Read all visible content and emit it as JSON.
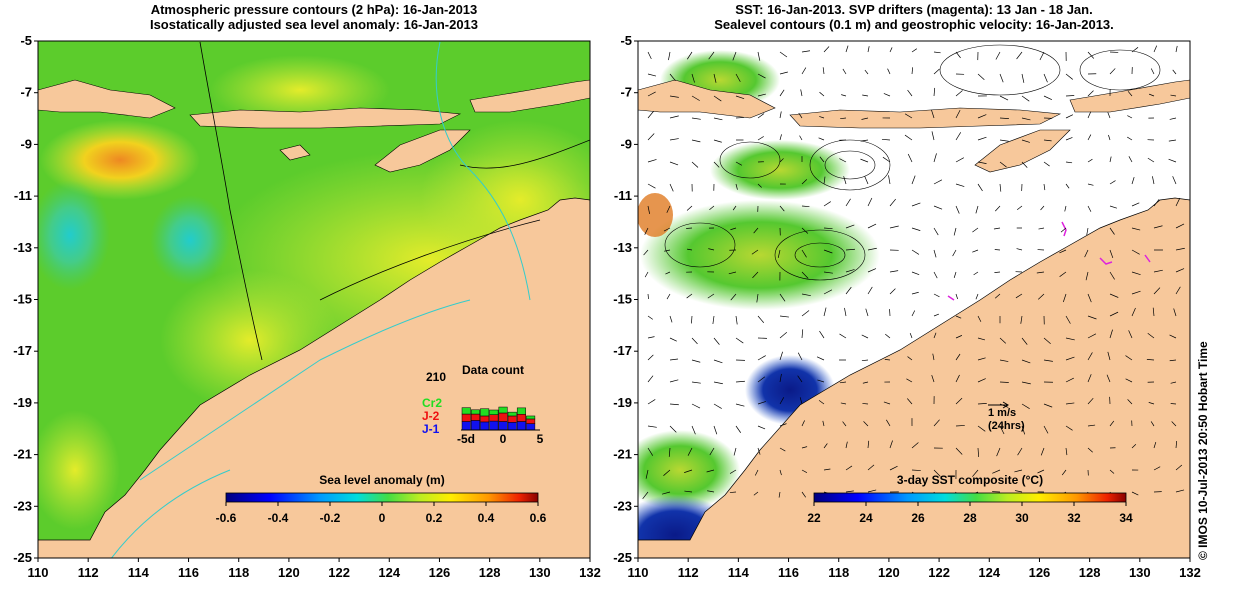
{
  "left_panel": {
    "title_lines": [
      "Atmospheric pressure contours (2 hPa): 16-Jan-2013",
      "Isostatically adjusted sea level anomaly: 16-Jan-2013"
    ],
    "colorbar": {
      "label": "Sea level anomaly (m)",
      "ticks": [
        "-0.6",
        "-0.4",
        "-0.2",
        "0",
        "0.2",
        "0.4",
        "0.6"
      ],
      "range": [
        -0.6,
        0.6
      ]
    },
    "data_count": {
      "title": "Data count",
      "max_label": "210",
      "series_labels": [
        "Cr2",
        "J-2",
        "J-1"
      ],
      "series_colors": [
        "#22dd22",
        "#ee1111",
        "#1111ee"
      ],
      "x_ticks": [
        "-5d",
        "0",
        "5"
      ],
      "bars": [
        {
          "j1": 40,
          "j2": 35,
          "cr2": 30
        },
        {
          "j1": 45,
          "j2": 30,
          "cr2": 20
        },
        {
          "j1": 38,
          "j2": 28,
          "cr2": 34
        },
        {
          "j1": 42,
          "j2": 30,
          "cr2": 22
        },
        {
          "j1": 40,
          "j2": 40,
          "cr2": 28
        },
        {
          "j1": 36,
          "j2": 30,
          "cr2": 18
        },
        {
          "j1": 40,
          "j2": 34,
          "cr2": 30
        },
        {
          "j1": 30,
          "j2": 22,
          "cr2": 14
        }
      ]
    }
  },
  "right_panel": {
    "title_lines": [
      "SST: 16-Jan-2013. SVP drifters (magenta): 13 Jan - 18 Jan.",
      "Sealevel contours (0.1 m) and geostrophic velocity: 16-Jan-2013."
    ],
    "colorbar": {
      "label": "3-day SST composite (°C)",
      "ticks": [
        "22",
        "24",
        "26",
        "28",
        "30",
        "32",
        "34"
      ],
      "range": [
        22,
        34
      ]
    },
    "velocity_key": {
      "speed": "1 m/s",
      "duration": "(24hrs)"
    }
  },
  "axes": {
    "lon_ticks": [
      "110",
      "112",
      "114",
      "116",
      "118",
      "120",
      "122",
      "124",
      "126",
      "128",
      "130",
      "132"
    ],
    "lat_ticks": [
      "-5",
      "-7",
      "-9",
      "-11",
      "-13",
      "-15",
      "-17",
      "-19",
      "-21",
      "-23",
      "-25"
    ]
  },
  "credit": "© IMOS 10-Jul-2013 20:50 Hobart Time",
  "colors": {
    "land": "#f7c89b",
    "ocean_base": "#5ccc2c",
    "contour": "#000000",
    "bathy": "#33cccc"
  }
}
